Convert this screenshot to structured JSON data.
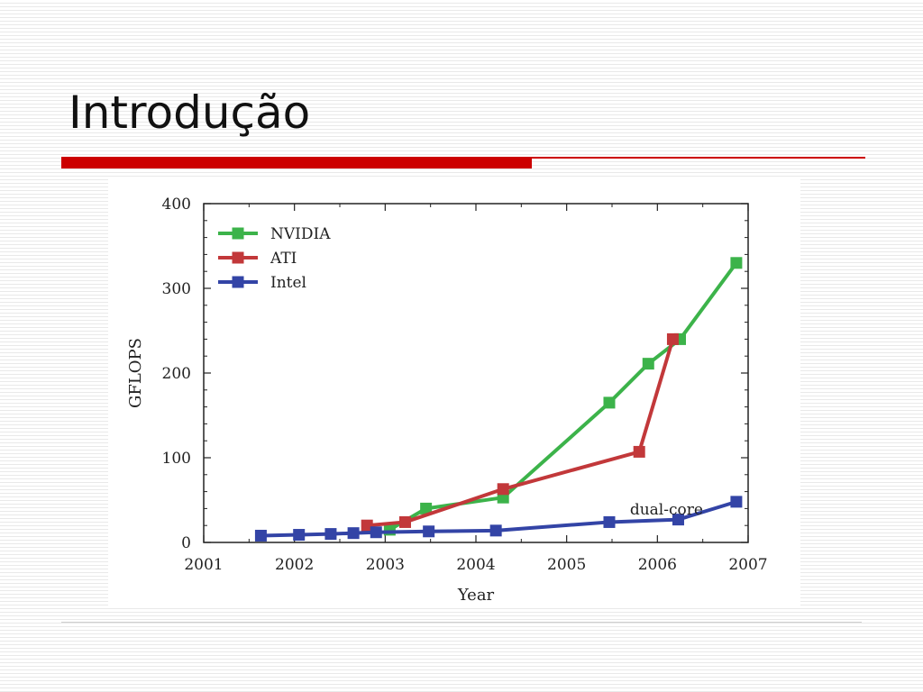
{
  "slide": {
    "title": "Introdução"
  },
  "chart_data": {
    "type": "line",
    "xlabel": "Year",
    "ylabel": "GFLOPS",
    "xlim": [
      2001,
      2007
    ],
    "ylim": [
      0,
      400
    ],
    "xticks": [
      "2001",
      "2002",
      "2003",
      "2004",
      "2005",
      "2006",
      "2007"
    ],
    "yticks": [
      "0",
      "100",
      "200",
      "300",
      "400"
    ],
    "legend_position": "top-left",
    "grid": false,
    "series": [
      {
        "name": "NVIDIA",
        "color": "#3cb34a",
        "points": [
          [
            2003.05,
            15
          ],
          [
            2003.45,
            40
          ],
          [
            2004.3,
            53
          ],
          [
            2005.47,
            165
          ],
          [
            2005.9,
            211
          ],
          [
            2006.25,
            240
          ],
          [
            2006.87,
            330
          ]
        ]
      },
      {
        "name": "ATI",
        "color": "#c2383a",
        "points": [
          [
            2002.8,
            20
          ],
          [
            2003.22,
            24
          ],
          [
            2004.3,
            63
          ],
          [
            2005.8,
            107
          ],
          [
            2006.17,
            240
          ]
        ]
      },
      {
        "name": "Intel",
        "color": "#3344a6",
        "points": [
          [
            2001.63,
            8
          ],
          [
            2002.05,
            9
          ],
          [
            2002.4,
            10
          ],
          [
            2002.65,
            11
          ],
          [
            2002.9,
            12
          ],
          [
            2003.48,
            13
          ],
          [
            2004.22,
            14
          ],
          [
            2005.47,
            24
          ],
          [
            2006.23,
            27
          ],
          [
            2006.87,
            48
          ]
        ]
      }
    ],
    "annotations": [
      {
        "text": "dual-core",
        "x": 2006.1,
        "y": 33
      }
    ]
  }
}
